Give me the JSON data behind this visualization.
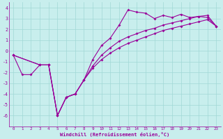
{
  "xlabel": "Windchill (Refroidissement éolien,°C)",
  "xlim": [
    -0.5,
    23.5
  ],
  "ylim": [
    -7,
    4.5
  ],
  "yticks": [
    -6,
    -5,
    -4,
    -3,
    -2,
    -1,
    0,
    1,
    2,
    3,
    4
  ],
  "xticks": [
    0,
    1,
    2,
    3,
    4,
    5,
    6,
    7,
    8,
    9,
    10,
    11,
    12,
    13,
    14,
    15,
    16,
    17,
    18,
    19,
    20,
    21,
    22,
    23
  ],
  "bg_color": "#c8eeed",
  "grid_color": "#a0d8d5",
  "line_color": "#990099",
  "line1_x": [
    0,
    1,
    2,
    3,
    4,
    5,
    6,
    7,
    8,
    9,
    10,
    11,
    12,
    13,
    14,
    15,
    16,
    17,
    18,
    19,
    20,
    21,
    22,
    23
  ],
  "line1_y": [
    -0.4,
    -2.2,
    -2.2,
    -1.3,
    -1.3,
    -6.0,
    -4.3,
    -4.0,
    -2.7,
    -0.8,
    0.5,
    1.2,
    2.4,
    3.8,
    3.6,
    3.5,
    3.0,
    3.3,
    3.1,
    3.4,
    3.1,
    3.2,
    3.1,
    2.3
  ],
  "line2_x": [
    0,
    3,
    4,
    5,
    6,
    7,
    8,
    9,
    10,
    11,
    12,
    13,
    14,
    15,
    16,
    17,
    18,
    19,
    20,
    21,
    22,
    23
  ],
  "line2_y": [
    -0.4,
    -1.3,
    -1.3,
    -6.0,
    -4.3,
    -4.0,
    -2.7,
    -1.4,
    -0.4,
    0.3,
    0.9,
    1.3,
    1.6,
    1.9,
    2.1,
    2.4,
    2.6,
    2.8,
    3.0,
    3.2,
    3.3,
    2.3
  ],
  "line3_x": [
    0,
    3,
    4,
    5,
    6,
    7,
    8,
    9,
    10,
    11,
    12,
    13,
    14,
    15,
    16,
    17,
    18,
    19,
    20,
    21,
    22,
    23
  ],
  "line3_y": [
    -0.4,
    -1.3,
    -1.3,
    -6.0,
    -4.3,
    -4.0,
    -2.7,
    -1.6,
    -0.8,
    -0.2,
    0.3,
    0.7,
    1.0,
    1.3,
    1.6,
    1.9,
    2.1,
    2.3,
    2.5,
    2.7,
    2.9,
    2.3
  ]
}
